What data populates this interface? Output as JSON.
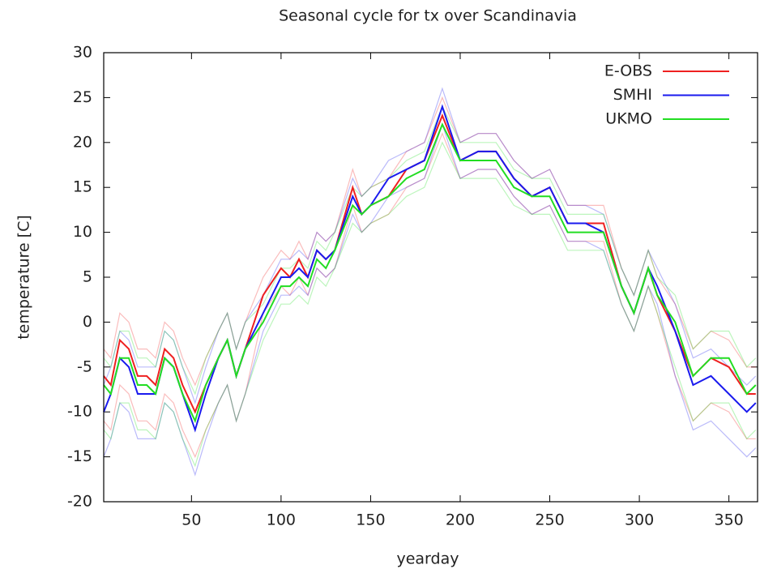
{
  "chart_data": {
    "type": "line",
    "title": "Seasonal cycle for tx over Scandinavia",
    "xlabel": "yearday",
    "ylabel": "temperature [C]",
    "xlim": [
      1,
      366
    ],
    "ylim": [
      -20,
      30
    ],
    "xticks": [
      50,
      100,
      150,
      200,
      250,
      300,
      350
    ],
    "yticks": [
      -20,
      -15,
      -10,
      -5,
      0,
      5,
      10,
      15,
      20,
      25,
      30
    ],
    "grid": false,
    "legend": "top-right",
    "x": [
      1,
      5,
      10,
      15,
      20,
      25,
      30,
      35,
      40,
      45,
      52,
      58,
      65,
      70,
      75,
      80,
      90,
      100,
      105,
      110,
      115,
      120,
      125,
      130,
      140,
      145,
      150,
      160,
      170,
      180,
      190,
      200,
      210,
      220,
      230,
      240,
      250,
      260,
      270,
      280,
      290,
      297,
      305,
      310,
      320,
      330,
      340,
      350,
      360,
      365
    ],
    "series": [
      {
        "name": "E-OBS",
        "color": "#ee2020",
        "values": [
          -6,
          -7,
          -2,
          -3,
          -6,
          -6,
          -7,
          -3,
          -4,
          -7,
          -10,
          -7,
          -4,
          -2,
          -6,
          -3,
          3,
          6,
          5,
          7,
          5,
          8,
          7,
          8,
          15,
          12,
          13,
          14,
          17,
          18,
          23,
          18,
          19,
          19,
          16,
          14,
          15,
          11,
          11,
          11,
          4,
          1,
          6,
          3,
          -1,
          -6,
          -4,
          -5,
          -8,
          -8
        ],
        "upper": [
          -3,
          -4,
          1,
          0,
          -3,
          -3,
          -4,
          0,
          -1,
          -4,
          -7,
          -4,
          -1,
          1,
          -3,
          0,
          5,
          8,
          7,
          9,
          7,
          10,
          9,
          10,
          17,
          14,
          15,
          16,
          19,
          20,
          25,
          20,
          21,
          21,
          18,
          16,
          17,
          13,
          13,
          13,
          6,
          3,
          8,
          5,
          2,
          -3,
          -1,
          -2,
          -5,
          -5
        ],
        "lower": [
          -11,
          -12,
          -7,
          -8,
          -11,
          -11,
          -12,
          -8,
          -9,
          -12,
          -15,
          -12,
          -9,
          -7,
          -11,
          -8,
          1,
          4,
          3,
          5,
          3,
          6,
          5,
          6,
          13,
          10,
          11,
          12,
          15,
          16,
          21,
          16,
          17,
          17,
          14,
          12,
          13,
          9,
          9,
          9,
          2,
          -1,
          4,
          1,
          -6,
          -11,
          -9,
          -10,
          -13,
          -13
        ]
      },
      {
        "name": "SMHI",
        "color": "#1a1aee",
        "values": [
          -10,
          -8,
          -4,
          -5,
          -8,
          -8,
          -8,
          -4,
          -5,
          -8,
          -12,
          -8,
          -4,
          -2,
          -6,
          -3,
          1,
          5,
          5,
          6,
          5,
          8,
          7,
          8,
          14,
          12,
          13,
          16,
          17,
          18,
          24,
          18,
          19,
          19,
          16,
          14,
          15,
          11,
          11,
          10,
          4,
          1,
          6,
          4,
          -1,
          -7,
          -6,
          -8,
          -10,
          -9
        ],
        "upper": [
          -7,
          -5,
          -1,
          -2,
          -5,
          -5,
          -5,
          -1,
          -2,
          -5,
          -9,
          -5,
          -1,
          1,
          -3,
          0,
          3,
          7,
          7,
          8,
          7,
          10,
          9,
          10,
          16,
          14,
          15,
          18,
          19,
          20,
          26,
          20,
          21,
          21,
          18,
          16,
          17,
          13,
          13,
          12,
          6,
          3,
          8,
          6,
          2,
          -4,
          -3,
          -5,
          -7,
          -6
        ],
        "lower": [
          -15,
          -13,
          -9,
          -10,
          -13,
          -13,
          -13,
          -9,
          -10,
          -13,
          -17,
          -13,
          -9,
          -7,
          -11,
          -8,
          -1,
          3,
          3,
          4,
          3,
          6,
          5,
          6,
          12,
          10,
          11,
          14,
          15,
          16,
          22,
          16,
          17,
          17,
          14,
          12,
          13,
          9,
          9,
          8,
          2,
          -1,
          4,
          2,
          -6,
          -12,
          -11,
          -13,
          -15,
          -14
        ]
      },
      {
        "name": "UKMO",
        "color": "#22dd22",
        "values": [
          -7,
          -8,
          -4,
          -4,
          -7,
          -7,
          -8,
          -4,
          -5,
          -8,
          -11,
          -7,
          -4,
          -2,
          -6,
          -3,
          0,
          4,
          4,
          5,
          4,
          7,
          6,
          8,
          13,
          12,
          13,
          14,
          16,
          17,
          22,
          18,
          18,
          18,
          15,
          14,
          14,
          10,
          10,
          10,
          4,
          1,
          6,
          3,
          0,
          -6,
          -4,
          -4,
          -8,
          -7
        ],
        "upper": [
          -4,
          -5,
          -1,
          -1,
          -4,
          -4,
          -5,
          -1,
          -2,
          -5,
          -8,
          -4,
          -1,
          1,
          -3,
          0,
          2,
          6,
          6,
          7,
          6,
          9,
          8,
          10,
          15,
          14,
          15,
          16,
          18,
          19,
          24,
          20,
          20,
          20,
          17,
          16,
          16,
          12,
          12,
          12,
          6,
          3,
          8,
          5,
          3,
          -3,
          -1,
          -1,
          -5,
          -4
        ],
        "lower": [
          -12,
          -13,
          -9,
          -9,
          -12,
          -12,
          -13,
          -9,
          -10,
          -13,
          -16,
          -12,
          -9,
          -7,
          -11,
          -8,
          -2,
          2,
          2,
          3,
          2,
          5,
          4,
          6,
          11,
          10,
          11,
          12,
          14,
          15,
          20,
          16,
          16,
          16,
          13,
          12,
          12,
          8,
          8,
          8,
          2,
          -1,
          4,
          1,
          -5,
          -11,
          -9,
          -9,
          -13,
          -12
        ]
      }
    ]
  }
}
